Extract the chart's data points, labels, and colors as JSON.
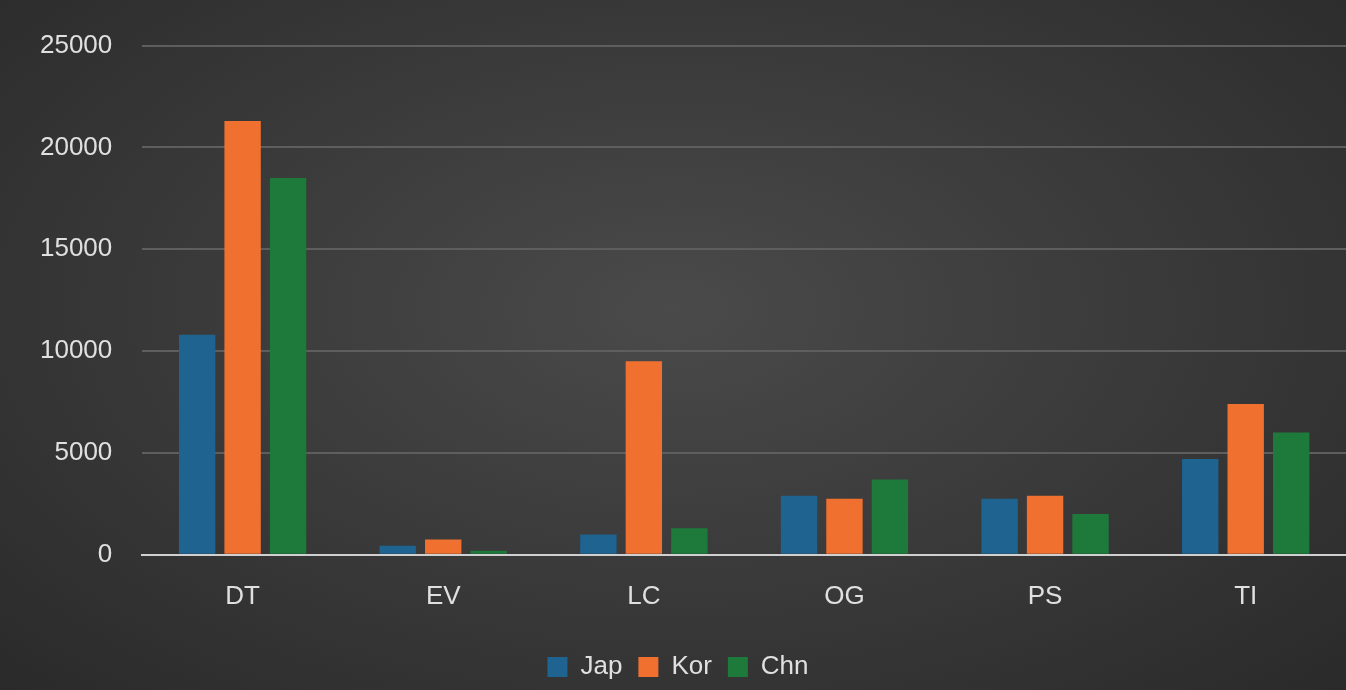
{
  "chart_data": {
    "type": "bar",
    "categories": [
      "DT",
      "EV",
      "LC",
      "OG",
      "PS",
      "TI"
    ],
    "series": [
      {
        "name": "Jap",
        "color": "#1f6391",
        "values": [
          10800,
          450,
          1000,
          2900,
          2750,
          4700
        ]
      },
      {
        "name": "Kor",
        "color": "#f07030",
        "values": [
          21300,
          750,
          9500,
          2750,
          2900,
          7400
        ]
      },
      {
        "name": "Chn",
        "color": "#1e7a3a",
        "values": [
          18500,
          200,
          1300,
          3700,
          2000,
          6000
        ]
      }
    ],
    "ylim": [
      0,
      25000
    ],
    "yticks": [
      0,
      5000,
      10000,
      15000,
      20000,
      25000
    ],
    "grid": "y",
    "legend": "bottom"
  }
}
